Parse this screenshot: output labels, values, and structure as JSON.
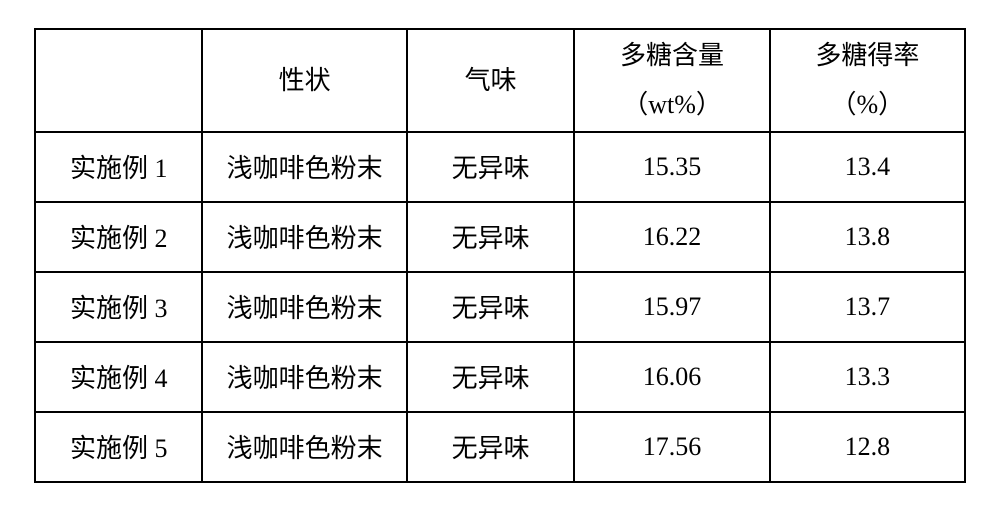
{
  "table": {
    "type": "table",
    "border_color": "#000000",
    "background_color": "#ffffff",
    "text_color": "#000000",
    "font_family": "SimSun",
    "header_fontsize_pt": 20,
    "body_fontsize_pt": 20,
    "columns": [
      {
        "key": "example",
        "label_line1": "",
        "label_line2": "",
        "width_pct": 18,
        "align": "center"
      },
      {
        "key": "prop",
        "label_line1": "性状",
        "label_line2": "",
        "width_pct": 22,
        "align": "center"
      },
      {
        "key": "odor",
        "label_line1": "气味",
        "label_line2": "",
        "width_pct": 18,
        "align": "center"
      },
      {
        "key": "content",
        "label_line1": "多糖含量",
        "label_line2": "（wt%）",
        "width_pct": 21,
        "align": "center"
      },
      {
        "key": "yield",
        "label_line1": "多糖得率",
        "label_line2": "（%）",
        "width_pct": 21,
        "align": "center"
      }
    ],
    "rows": [
      {
        "example": "实施例 1",
        "prop": "浅咖啡色粉末",
        "odor": "无异味",
        "content": "15.35",
        "yield": "13.4"
      },
      {
        "example": "实施例 2",
        "prop": "浅咖啡色粉末",
        "odor": "无异味",
        "content": "16.22",
        "yield": "13.8"
      },
      {
        "example": "实施例 3",
        "prop": "浅咖啡色粉末",
        "odor": "无异味",
        "content": "15.97",
        "yield": "13.7"
      },
      {
        "example": "实施例 4",
        "prop": "浅咖啡色粉末",
        "odor": "无异味",
        "content": "16.06",
        "yield": "13.3"
      },
      {
        "example": "实施例 5",
        "prop": "浅咖啡色粉末",
        "odor": "无异味",
        "content": "17.56",
        "yield": "12.8"
      }
    ]
  }
}
